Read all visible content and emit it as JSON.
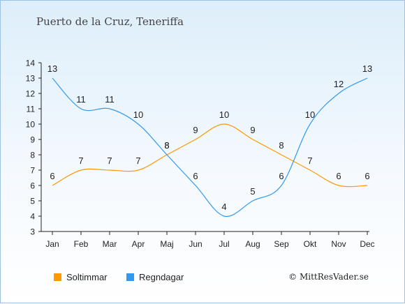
{
  "title": "Puerto de la Cruz, Teneriffa",
  "credit": "© MittResVader.se",
  "chart_data": {
    "type": "line",
    "categories": [
      "Jan",
      "Feb",
      "Mar",
      "Apr",
      "Maj",
      "Jun",
      "Jul",
      "Aug",
      "Sep",
      "Okt",
      "Nov",
      "Dec"
    ],
    "ylim": [
      3,
      14
    ],
    "yticks": [
      3,
      4,
      5,
      6,
      7,
      8,
      9,
      10,
      11,
      12,
      13,
      14
    ],
    "grid": false,
    "legend_position": "bottom-left",
    "series": [
      {
        "name": "Soltimmar",
        "color": "#ff9900",
        "values": [
          6,
          7,
          7,
          7,
          8,
          9,
          10,
          9,
          8,
          7,
          6,
          6
        ]
      },
      {
        "name": "Regndagar",
        "color": "#3399ee",
        "values": [
          13,
          11,
          11,
          10,
          8,
          6,
          4,
          5,
          6,
          10,
          12,
          13
        ]
      }
    ]
  }
}
